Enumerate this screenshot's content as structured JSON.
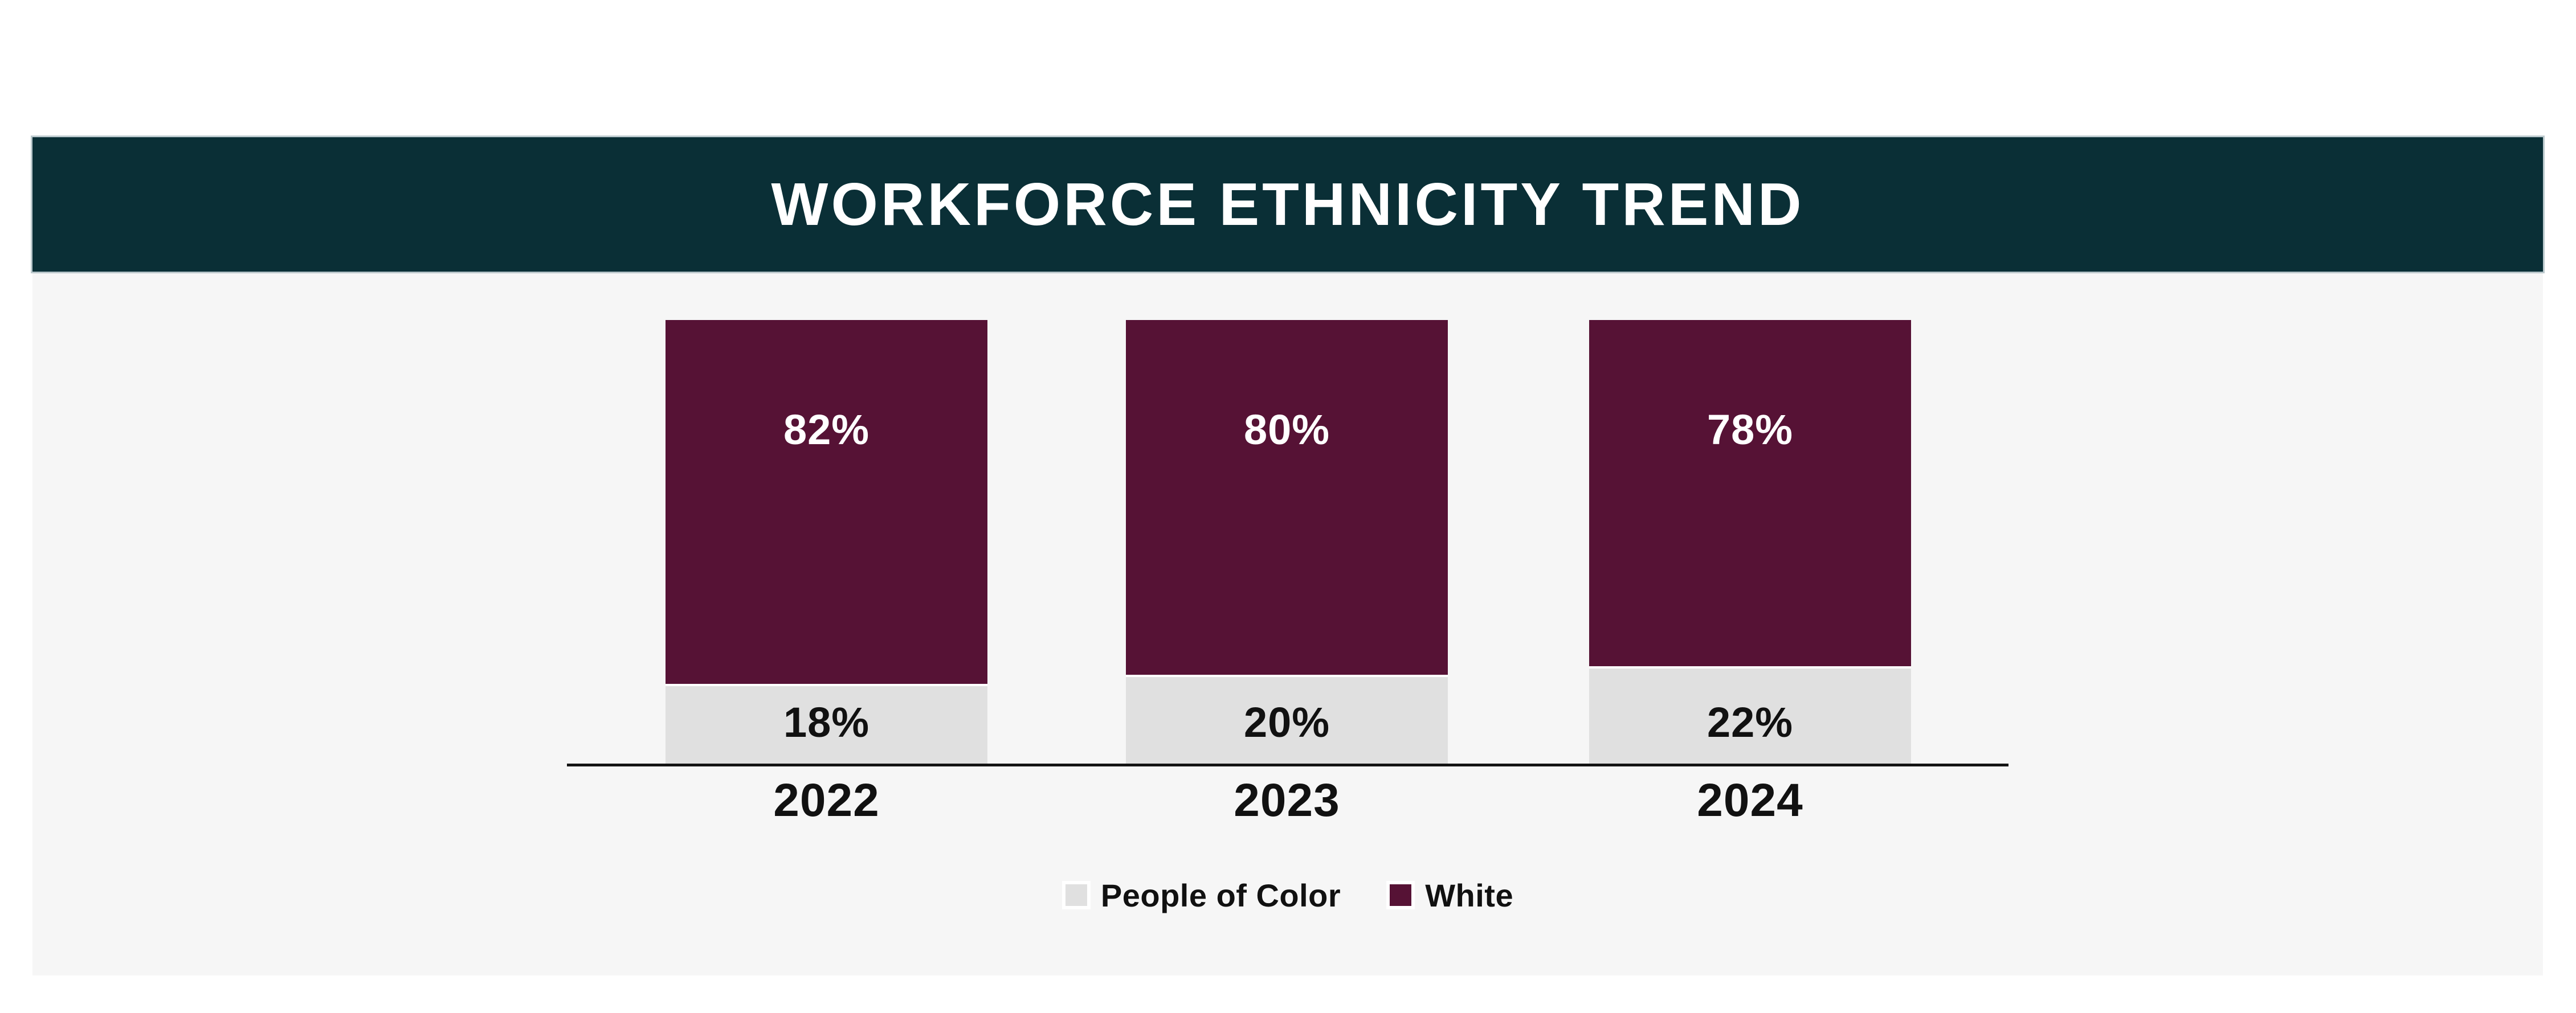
{
  "page": {
    "background": "#FFFFFF",
    "panel_bg": "#F6F6F6",
    "axis_color": "#141414"
  },
  "header": {
    "title": "WORKFORCE ETHNICITY TREND",
    "bg": "#0A2F36",
    "text_color": "#FFFFFF"
  },
  "chart_data": {
    "type": "bar",
    "stacked": true,
    "title": "WORKFORCE ETHNICITY TREND",
    "categories": [
      "2022",
      "2023",
      "2024"
    ],
    "series": [
      {
        "name": "White",
        "color": "#561235",
        "label_color": "#FFFFFF",
        "values": [
          82,
          80,
          78
        ],
        "labels": [
          "82%",
          "80%",
          "78%"
        ]
      },
      {
        "name": "People of Color",
        "color": "#E0E0E0",
        "label_color": "#111111",
        "values": [
          18,
          20,
          22
        ],
        "labels": [
          "18%",
          "20%",
          "22%"
        ]
      }
    ],
    "unit": "%",
    "ylim": [
      0,
      100
    ],
    "grid": false,
    "axis": "x-baseline-only",
    "legend_position": "bottom-center"
  }
}
